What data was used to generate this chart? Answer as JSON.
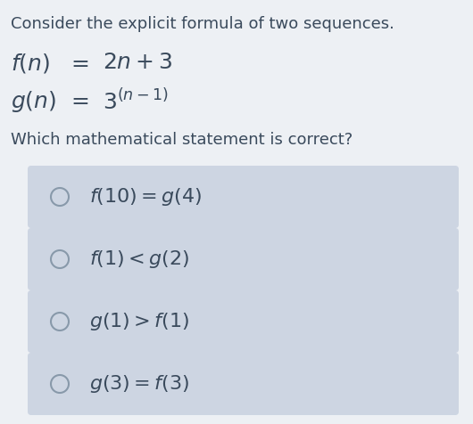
{
  "bg_color": "#edf0f4",
  "text_color": "#3a4a5c",
  "title_text": "Consider the explicit formula of two sequences.",
  "question": "Which mathematical statement is correct?",
  "options": [
    "$f(10) = g(4)$",
    "$f(1) < g(2)$",
    "$g(1) > f(1)$",
    "$g(3) = f(3)$"
  ],
  "option_box_color": "#cdd5e2",
  "circle_edge_color": "#8899aa",
  "title_fontsize": 13.0,
  "formula_fontsize": 16,
  "question_fontsize": 13.0,
  "option_fontsize": 16,
  "figsize": [
    5.3,
    4.76
  ],
  "dpi": 100
}
